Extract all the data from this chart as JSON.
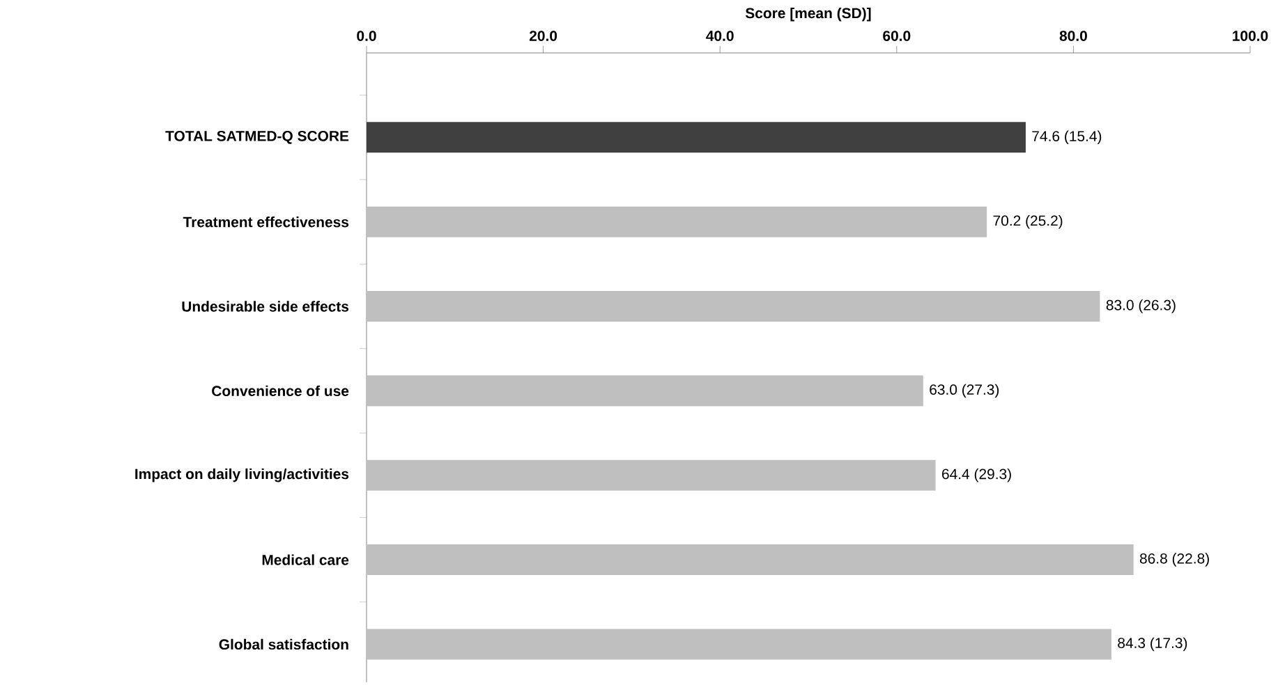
{
  "chart_data": {
    "type": "bar",
    "orientation": "horizontal",
    "xlabel": "Score [mean (SD)]",
    "categories": [
      "TOTAL SATMED-Q SCORE",
      "Treatment effectiveness",
      "Undesirable side effects",
      "Convenience of use",
      "Impact on daily living/activities",
      "Medical  care",
      "Global satisfaction"
    ],
    "values": [
      74.6,
      70.2,
      83.0,
      63.0,
      64.4,
      86.8,
      84.3
    ],
    "value_labels": [
      "74.6 (15.4)",
      "70.2 (25.2)",
      "83.0 (26.3)",
      "63.0 (27.3)",
      "64.4 (29.3)",
      "86.8 (22.8)",
      "84.3 (17.3)"
    ],
    "colors": [
      "#404040",
      "#bfbfbf",
      "#bfbfbf",
      "#bfbfbf",
      "#bfbfbf",
      "#bfbfbf",
      "#bfbfbf"
    ],
    "xlim": [
      0,
      100
    ],
    "xticks": [
      {
        "value": 0,
        "label": "0.0"
      },
      {
        "value": 20,
        "label": "20.0"
      },
      {
        "value": 40,
        "label": "40.0"
      },
      {
        "value": 60,
        "label": "60.0"
      },
      {
        "value": 80,
        "label": "80.0"
      },
      {
        "value": 100,
        "label": "100.0"
      }
    ],
    "grid": false
  }
}
